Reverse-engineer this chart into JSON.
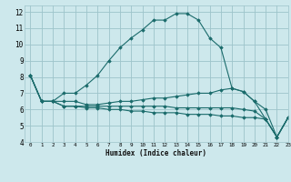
{
  "xlabel": "Humidex (Indice chaleur)",
  "bg_color": "#cde8ec",
  "grid_color": "#9dc4ca",
  "line_color": "#1a6b6b",
  "xlim": [
    -0.5,
    23
  ],
  "ylim": [
    4,
    12.4
  ],
  "xticks": [
    0,
    1,
    2,
    3,
    4,
    5,
    6,
    7,
    8,
    9,
    10,
    11,
    12,
    13,
    14,
    15,
    16,
    17,
    18,
    19,
    20,
    21,
    22,
    23
  ],
  "yticks": [
    4,
    5,
    6,
    7,
    8,
    9,
    10,
    11,
    12
  ],
  "series": [
    [
      8.1,
      6.5,
      6.5,
      7.0,
      7.0,
      7.5,
      8.1,
      9.0,
      9.8,
      10.4,
      10.9,
      11.5,
      11.5,
      11.9,
      11.9,
      11.5,
      10.4,
      9.8,
      7.3,
      7.1,
      6.5,
      6.0,
      4.3,
      5.5
    ],
    [
      8.1,
      6.5,
      6.5,
      6.5,
      6.5,
      6.3,
      6.3,
      6.4,
      6.5,
      6.5,
      6.6,
      6.7,
      6.7,
      6.8,
      6.9,
      7.0,
      7.0,
      7.2,
      7.3,
      7.1,
      6.5,
      5.4,
      4.3,
      5.5
    ],
    [
      8.1,
      6.5,
      6.5,
      6.2,
      6.2,
      6.2,
      6.2,
      6.2,
      6.2,
      6.2,
      6.2,
      6.2,
      6.2,
      6.1,
      6.1,
      6.1,
      6.1,
      6.1,
      6.1,
      6.0,
      5.9,
      5.4,
      4.3,
      5.5
    ],
    [
      8.1,
      6.5,
      6.5,
      6.2,
      6.2,
      6.1,
      6.1,
      6.0,
      6.0,
      5.9,
      5.9,
      5.8,
      5.8,
      5.8,
      5.7,
      5.7,
      5.7,
      5.6,
      5.6,
      5.5,
      5.5,
      5.4,
      4.3,
      5.5
    ]
  ],
  "x": [
    0,
    1,
    2,
    3,
    4,
    5,
    6,
    7,
    8,
    9,
    10,
    11,
    12,
    13,
    14,
    15,
    16,
    17,
    18,
    19,
    20,
    21,
    22,
    23
  ]
}
